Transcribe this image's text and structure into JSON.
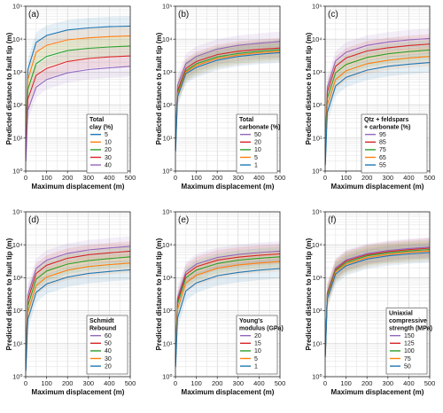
{
  "chart_data": [
    {
      "type": "line",
      "panel_label": "(a)",
      "xlabel": "Maximum displacement (m)",
      "ylabel": "Predicted distance to fault tip (m)",
      "xlim": [
        0,
        500
      ],
      "ylim": [
        1,
        100000
      ],
      "yscale": "log",
      "grid": true,
      "x_ticks": [
        "0",
        "100",
        "200",
        "300",
        "400",
        "500"
      ],
      "y_ticks": [
        "10⁰",
        "10¹",
        "10²",
        "10³",
        "10⁴",
        "10⁵"
      ],
      "legend_title": [
        "Total",
        "clay (%)"
      ],
      "legend_position": "center-right",
      "series": [
        {
          "name": "5",
          "color": "#1f77b4",
          "x": [
            1,
            10,
            50,
            100,
            200,
            300,
            400,
            500
          ],
          "y": [
            10,
            1200,
            8000,
            13000,
            19000,
            22000,
            24000,
            25000
          ]
        },
        {
          "name": "10",
          "color": "#ff7f0e",
          "x": [
            1,
            10,
            50,
            100,
            200,
            300,
            400,
            500
          ],
          "y": [
            6,
            600,
            4000,
            6500,
            9500,
            11000,
            12000,
            12500
          ]
        },
        {
          "name": "20",
          "color": "#2ca02c",
          "x": [
            1,
            10,
            50,
            100,
            200,
            300,
            400,
            500
          ],
          "y": [
            4,
            300,
            1800,
            3000,
            4500,
            5300,
            5800,
            6200
          ]
        },
        {
          "name": "30",
          "color": "#d62728",
          "x": [
            1,
            10,
            50,
            100,
            200,
            300,
            400,
            500
          ],
          "y": [
            3,
            150,
            800,
            1300,
            2100,
            2600,
            2900,
            3100
          ]
        },
        {
          "name": "40",
          "color": "#9467bd",
          "x": [
            1,
            10,
            50,
            100,
            200,
            300,
            400,
            500
          ],
          "y": [
            2,
            70,
            350,
            600,
            950,
            1200,
            1350,
            1500
          ]
        }
      ]
    },
    {
      "type": "line",
      "panel_label": "(b)",
      "xlabel": "Maximum displacement (m)",
      "ylabel": "Predicted distance to fault tip (m)",
      "xlim": [
        0,
        500
      ],
      "ylim": [
        1,
        100000
      ],
      "yscale": "log",
      "grid": true,
      "x_ticks": [
        "0",
        "100",
        "200",
        "300",
        "400",
        "500"
      ],
      "y_ticks": [
        "10⁰",
        "10¹",
        "10²",
        "10³",
        "10⁴",
        "10⁵"
      ],
      "legend_title": [
        "Total",
        "carbonate (%)"
      ],
      "legend_position": "center-right",
      "series": [
        {
          "name": "50",
          "color": "#9467bd",
          "x": [
            1,
            10,
            50,
            100,
            200,
            300,
            400,
            500
          ],
          "y": [
            10,
            400,
            1800,
            3000,
            5000,
            6500,
            7500,
            8500
          ]
        },
        {
          "name": "20",
          "color": "#d62728",
          "x": [
            1,
            10,
            50,
            100,
            200,
            300,
            400,
            500
          ],
          "y": [
            7,
            280,
            1300,
            2100,
            3400,
            4300,
            4900,
            5400
          ]
        },
        {
          "name": "10",
          "color": "#2ca02c",
          "x": [
            1,
            10,
            50,
            100,
            200,
            300,
            400,
            500
          ],
          "y": [
            6,
            240,
            1100,
            1800,
            2900,
            3700,
            4300,
            4800
          ]
        },
        {
          "name": "5",
          "color": "#ff7f0e",
          "x": [
            1,
            10,
            50,
            100,
            200,
            300,
            400,
            500
          ],
          "y": [
            5,
            210,
            1000,
            1600,
            2600,
            3300,
            3900,
            4300
          ]
        },
        {
          "name": "1",
          "color": "#1f77b4",
          "x": [
            1,
            10,
            50,
            100,
            200,
            300,
            400,
            500
          ],
          "y": [
            4,
            180,
            900,
            1400,
            2300,
            3000,
            3500,
            3900
          ]
        }
      ]
    },
    {
      "type": "line",
      "panel_label": "(c)",
      "xlabel": "Maximum displacement (m)",
      "ylabel": "Predicted distance to fault tip (m)",
      "xlim": [
        0,
        500
      ],
      "ylim": [
        1,
        100000
      ],
      "yscale": "log",
      "grid": true,
      "x_ticks": [
        "0",
        "100",
        "200",
        "300",
        "400",
        "500"
      ],
      "y_ticks": [
        "10⁰",
        "10¹",
        "10²",
        "10³",
        "10⁴",
        "10⁵"
      ],
      "legend_title": [
        "Qtz + feldspars",
        "+ carbonate (%)"
      ],
      "legend_position": "center-right",
      "series": [
        {
          "name": "95",
          "color": "#9467bd",
          "x": [
            1,
            10,
            50,
            100,
            200,
            300,
            400,
            500
          ],
          "y": [
            5,
            350,
            2200,
            4000,
            6500,
            8200,
            9500,
            10500
          ]
        },
        {
          "name": "85",
          "color": "#d62728",
          "x": [
            1,
            10,
            50,
            100,
            200,
            300,
            400,
            500
          ],
          "y": [
            4,
            250,
            1500,
            2700,
            4400,
            5500,
            6400,
            7100
          ]
        },
        {
          "name": "75",
          "color": "#2ca02c",
          "x": [
            1,
            10,
            50,
            100,
            200,
            300,
            400,
            500
          ],
          "y": [
            3,
            160,
            950,
            1700,
            2800,
            3600,
            4200,
            4700
          ]
        },
        {
          "name": "65",
          "color": "#ff7f0e",
          "x": [
            1,
            10,
            50,
            100,
            200,
            300,
            400,
            500
          ],
          "y": [
            2,
            100,
            600,
            1100,
            1800,
            2300,
            2700,
            3000
          ]
        },
        {
          "name": "55",
          "color": "#1f77b4",
          "x": [
            1,
            10,
            50,
            100,
            200,
            300,
            400,
            500
          ],
          "y": [
            1.5,
            60,
            380,
            700,
            1150,
            1500,
            1750,
            1950
          ]
        }
      ]
    },
    {
      "type": "line",
      "panel_label": "(d)",
      "xlabel": "Maximum displacement (m)",
      "ylabel": "Predicted distance to fault tip (m)",
      "xlim": [
        0,
        500
      ],
      "ylim": [
        1,
        100000
      ],
      "yscale": "log",
      "grid": true,
      "x_ticks": [
        "0",
        "100",
        "200",
        "300",
        "400",
        "500"
      ],
      "y_ticks": [
        "10⁰",
        "10¹",
        "10²",
        "10³",
        "10⁴",
        "10⁵"
      ],
      "legend_title": [
        "Schmidt",
        "Rebound"
      ],
      "legend_position": "lower-right",
      "series": [
        {
          "name": "60",
          "color": "#9467bd",
          "x": [
            1,
            10,
            50,
            100,
            200,
            300,
            400,
            500
          ],
          "y": [
            4,
            300,
            1900,
            3400,
            5500,
            7000,
            8000,
            9000
          ]
        },
        {
          "name": "50",
          "color": "#d62728",
          "x": [
            1,
            10,
            50,
            100,
            200,
            300,
            400,
            500
          ],
          "y": [
            3,
            210,
            1350,
            2400,
            3900,
            5000,
            5700,
            6400
          ]
        },
        {
          "name": "40",
          "color": "#2ca02c",
          "x": [
            1,
            10,
            50,
            100,
            200,
            300,
            400,
            500
          ],
          "y": [
            2.5,
            140,
            900,
            1600,
            2600,
            3300,
            3800,
            4300
          ]
        },
        {
          "name": "30",
          "color": "#ff7f0e",
          "x": [
            1,
            10,
            50,
            100,
            200,
            300,
            400,
            500
          ],
          "y": [
            2,
            90,
            580,
            1050,
            1700,
            2200,
            2500,
            2800
          ]
        },
        {
          "name": "20",
          "color": "#1f77b4",
          "x": [
            1,
            10,
            50,
            100,
            200,
            300,
            400,
            500
          ],
          "y": [
            1.5,
            55,
            360,
            650,
            1050,
            1350,
            1550,
            1750
          ]
        }
      ]
    },
    {
      "type": "line",
      "panel_label": "(e)",
      "xlabel": "Maximum displacement (m)",
      "ylabel": "Predicted distance to fault tip (m)",
      "xlim": [
        0,
        500
      ],
      "ylim": [
        1,
        100000
      ],
      "yscale": "log",
      "grid": true,
      "x_ticks": [
        "0",
        "100",
        "200",
        "300",
        "400",
        "500"
      ],
      "y_ticks": [
        "10⁰",
        "10¹",
        "10²",
        "10³",
        "10⁴",
        "10⁵"
      ],
      "legend_title": [
        "Young's",
        "modulus (GPa)"
      ],
      "legend_position": "lower-right",
      "series": [
        {
          "name": "20",
          "color": "#9467bd",
          "x": [
            1,
            10,
            50,
            100,
            200,
            300,
            400,
            500
          ],
          "y": [
            4,
            250,
            1500,
            2600,
            4100,
            5100,
            5800,
            6400
          ]
        },
        {
          "name": "15",
          "color": "#d62728",
          "x": [
            1,
            10,
            50,
            100,
            200,
            300,
            400,
            500
          ],
          "y": [
            3.5,
            200,
            1250,
            2150,
            3400,
            4200,
            4800,
            5300
          ]
        },
        {
          "name": "10",
          "color": "#2ca02c",
          "x": [
            1,
            10,
            50,
            100,
            200,
            300,
            400,
            500
          ],
          "y": [
            3,
            160,
            1000,
            1700,
            2700,
            3400,
            3900,
            4300
          ]
        },
        {
          "name": "5",
          "color": "#ff7f0e",
          "x": [
            1,
            10,
            50,
            100,
            200,
            300,
            400,
            500
          ],
          "y": [
            2.5,
            110,
            700,
            1200,
            1950,
            2450,
            2800,
            3100
          ]
        },
        {
          "name": "1",
          "color": "#1f77b4",
          "x": [
            1,
            10,
            50,
            100,
            200,
            300,
            400,
            500
          ],
          "y": [
            2,
            60,
            400,
            700,
            1150,
            1450,
            1700,
            1900
          ]
        }
      ]
    },
    {
      "type": "line",
      "panel_label": "(f)",
      "xlabel": "Maximum displacement (m)",
      "ylabel": "Predicted distance to fault tip (m)",
      "xlim": [
        0,
        500
      ],
      "ylim": [
        1,
        100000
      ],
      "yscale": "log",
      "grid": true,
      "x_ticks": [
        "0",
        "100",
        "200",
        "300",
        "400",
        "500"
      ],
      "y_ticks": [
        "10⁰",
        "10¹",
        "10²",
        "10³",
        "10⁴",
        "10⁵"
      ],
      "legend_title": [
        "Uniaxial",
        "compressive",
        "strength (MPa)"
      ],
      "legend_position": "lower-right",
      "series": [
        {
          "name": "150",
          "color": "#9467bd",
          "x": [
            1,
            10,
            50,
            100,
            200,
            300,
            400,
            500
          ],
          "y": [
            6,
            350,
            2000,
            3500,
            5400,
            6700,
            7700,
            8500
          ]
        },
        {
          "name": "125",
          "color": "#d62728",
          "x": [
            1,
            10,
            50,
            100,
            200,
            300,
            400,
            500
          ],
          "y": [
            5.5,
            320,
            1800,
            3200,
            5000,
            6200,
            7100,
            7900
          ]
        },
        {
          "name": "100",
          "color": "#2ca02c",
          "x": [
            1,
            10,
            50,
            100,
            200,
            300,
            400,
            500
          ],
          "y": [
            5,
            290,
            1650,
            2900,
            4600,
            5700,
            6500,
            7200
          ]
        },
        {
          "name": "75",
          "color": "#ff7f0e",
          "x": [
            1,
            10,
            50,
            100,
            200,
            300,
            400,
            500
          ],
          "y": [
            4.5,
            260,
            1500,
            2600,
            4100,
            5100,
            5900,
            6500
          ]
        },
        {
          "name": "50",
          "color": "#1f77b4",
          "x": [
            1,
            10,
            50,
            100,
            200,
            300,
            400,
            500
          ],
          "y": [
            4,
            230,
            1300,
            2300,
            3700,
            4600,
            5300,
            5800
          ]
        }
      ]
    }
  ]
}
